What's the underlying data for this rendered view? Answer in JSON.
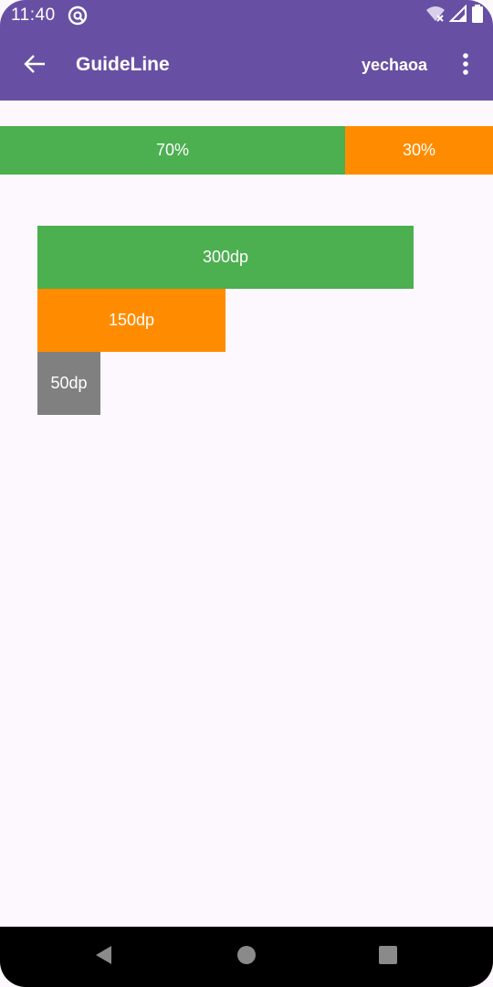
{
  "status_bar": {
    "time": "11:40",
    "app_icon": "at-sign-icon",
    "icons": [
      "wifi-off-icon",
      "signal-icon",
      "battery-icon"
    ]
  },
  "app_bar": {
    "title": "GuideLine",
    "action_label": "yechaoa",
    "back_icon": "arrow-back-icon",
    "overflow_icon": "more-vert-icon",
    "color": "#6750a4"
  },
  "percent_row": {
    "left_label": "70%",
    "right_label": "30%",
    "left_fraction": 0.7,
    "right_fraction": 0.3
  },
  "dp_bars": [
    {
      "label": "300dp",
      "color": "#4caf50"
    },
    {
      "label": "150dp",
      "color": "#ff8c00"
    },
    {
      "label": "50dp",
      "color": "#808080"
    }
  ],
  "colors": {
    "green": "#4caf50",
    "orange": "#ff8c00",
    "gray": "#808080",
    "background": "#fdf8fd"
  },
  "nav_bar": {
    "buttons": [
      "nav-back-icon",
      "nav-home-icon",
      "nav-recents-icon"
    ]
  }
}
